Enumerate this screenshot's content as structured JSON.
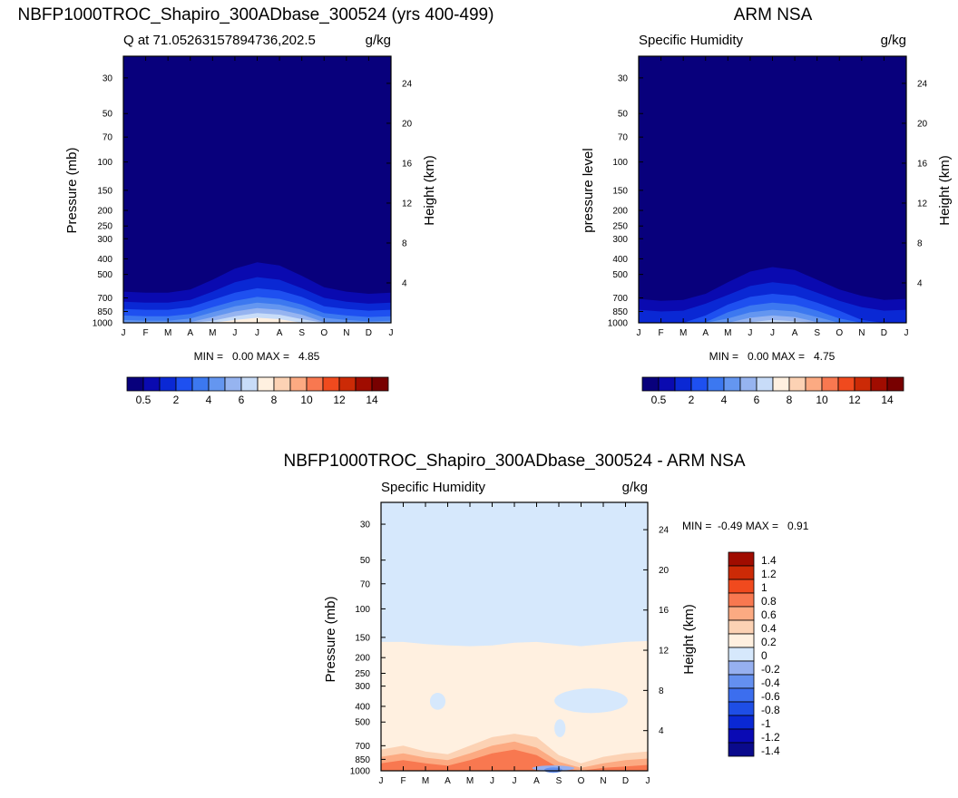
{
  "figure": {
    "panel1_title": "NBFP1000TROC_Shapiro_300ADbase_300524 (yrs 400-499)",
    "panel2_title": "ARM NSA",
    "panel3_title": "NBFP1000TROC_Shapiro_300ADbase_300524 - ARM NSA"
  },
  "colors": {
    "abs_scale": [
      "#08007c",
      "#0a0ab0",
      "#0a28d4",
      "#1e50f0",
      "#3c78f0",
      "#6496f0",
      "#96b4f0",
      "#c8dcf8",
      "#fff0e0",
      "#fcd2b4",
      "#fcaa82",
      "#f87850",
      "#f04a1e",
      "#cc2a06",
      "#a00c00",
      "#780000"
    ],
    "diff_scale": [
      "#0a0a8c",
      "#0a0ab4",
      "#0a28d4",
      "#1e4ee6",
      "#3c6eee",
      "#6490f0",
      "#96b0f0",
      "#d6e8fc",
      "#fff0e0",
      "#fcd2b4",
      "#fcaa82",
      "#f87850",
      "#f04a1e",
      "#cc2a06",
      "#a00c00"
    ]
  },
  "chart_data": [
    {
      "type": "heatmap",
      "title": "NBFP1000TROC_Shapiro_300ADbase_300524 (yrs 400-499)",
      "left_string": "Q at 71.05263157894736,202.5",
      "right_string": "g/kg",
      "ylabel": "Pressure (mb)",
      "ylabel_right": "Height (km)",
      "x_ticks": [
        "J",
        "F",
        "M",
        "A",
        "M",
        "J",
        "J",
        "A",
        "S",
        "O",
        "N",
        "D",
        "J"
      ],
      "y_ticks": [
        "30",
        "50",
        "70",
        "100",
        "150",
        "200",
        "250",
        "300",
        "400",
        "500",
        "700",
        "850",
        "1000"
      ],
      "y_right_ticks": [
        "24",
        "20",
        "16",
        "12",
        "8",
        "4"
      ],
      "min_max_text": "MIN =   0.00 MAX =   4.85",
      "min": 0.0,
      "max": 4.85,
      "colorbar_labels": [
        "0.5",
        "2",
        "4",
        "6",
        "8",
        "10",
        "12",
        "14"
      ],
      "levels": [
        0.5,
        1,
        1.5,
        2,
        2.5,
        3,
        3.5,
        4
      ],
      "contour_pressure_mb": [
        [
          640,
          740,
          820,
          900,
          960,
          1000,
          1000,
          1000
        ],
        [
          650,
          750,
          830,
          910,
          970,
          1000,
          1000,
          1000
        ],
        [
          650,
          750,
          830,
          910,
          970,
          1000,
          1000,
          1000
        ],
        [
          620,
          720,
          800,
          880,
          940,
          990,
          1000,
          1000
        ],
        [
          540,
          640,
          720,
          800,
          860,
          920,
          970,
          1000
        ],
        [
          460,
          560,
          650,
          730,
          790,
          850,
          910,
          960
        ],
        [
          420,
          520,
          610,
          690,
          750,
          810,
          870,
          930
        ],
        [
          440,
          540,
          630,
          710,
          770,
          830,
          890,
          950
        ],
        [
          510,
          610,
          690,
          770,
          830,
          890,
          950,
          1000
        ],
        [
          600,
          700,
          790,
          870,
          930,
          990,
          1000,
          1000
        ],
        [
          640,
          740,
          820,
          900,
          960,
          1000,
          1000,
          1000
        ],
        [
          660,
          760,
          840,
          920,
          980,
          1000,
          1000,
          1000
        ],
        [
          650,
          750,
          830,
          910,
          970,
          1000,
          1000,
          1000
        ]
      ]
    },
    {
      "type": "heatmap",
      "title": "ARM NSA",
      "left_string": "Specific Humidity",
      "right_string": "g/kg",
      "ylabel": "pressure level",
      "ylabel_right": "Height (km)",
      "x_ticks": [
        "J",
        "F",
        "M",
        "A",
        "M",
        "J",
        "J",
        "A",
        "S",
        "O",
        "N",
        "D",
        "J"
      ],
      "y_ticks": [
        "30",
        "50",
        "70",
        "100",
        "150",
        "200",
        "250",
        "300",
        "400",
        "500",
        "700",
        "850",
        "1000"
      ],
      "y_right_ticks": [
        "24",
        "20",
        "16",
        "12",
        "8",
        "4"
      ],
      "min_max_text": "MIN =   0.00 MAX =   4.75",
      "min": 0.0,
      "max": 4.75,
      "colorbar_labels": [
        "0.5",
        "2",
        "4",
        "6",
        "8",
        "10",
        "12",
        "14"
      ],
      "levels": [
        0.5,
        1,
        1.5,
        2,
        2.5,
        3,
        3.5,
        4
      ],
      "contour_pressure_mb": [
        [
          710,
          830,
          1000,
          1000,
          1000,
          1000,
          1000,
          1000
        ],
        [
          730,
          850,
          1000,
          1000,
          1000,
          1000,
          1000,
          1000
        ],
        [
          720,
          840,
          1000,
          1000,
          1000,
          1000,
          1000,
          1000
        ],
        [
          660,
          760,
          900,
          990,
          1000,
          1000,
          1000,
          1000
        ],
        [
          560,
          670,
          770,
          860,
          940,
          1000,
          1000,
          1000
        ],
        [
          480,
          590,
          690,
          780,
          860,
          930,
          990,
          1000
        ],
        [
          450,
          560,
          660,
          750,
          830,
          900,
          960,
          1000
        ],
        [
          470,
          580,
          680,
          770,
          850,
          920,
          980,
          1000
        ],
        [
          540,
          650,
          750,
          840,
          920,
          990,
          1000,
          1000
        ],
        [
          620,
          730,
          840,
          940,
          1000,
          1000,
          1000,
          1000
        ],
        [
          680,
          800,
          960,
          1000,
          1000,
          1000,
          1000,
          1000
        ],
        [
          720,
          840,
          1000,
          1000,
          1000,
          1000,
          1000,
          1000
        ],
        [
          710,
          830,
          1000,
          1000,
          1000,
          1000,
          1000,
          1000
        ]
      ]
    },
    {
      "type": "heatmap",
      "title": "NBFP1000TROC_Shapiro_300ADbase_300524 - ARM NSA",
      "left_string": "Specific Humidity",
      "right_string": "g/kg",
      "ylabel": "Pressure (mb)",
      "ylabel_right": "Height (km)",
      "x_ticks": [
        "J",
        "F",
        "M",
        "A",
        "M",
        "J",
        "J",
        "A",
        "S",
        "O",
        "N",
        "D",
        "J"
      ],
      "y_ticks": [
        "30",
        "50",
        "70",
        "100",
        "150",
        "200",
        "250",
        "300",
        "400",
        "500",
        "700",
        "850",
        "1000"
      ],
      "y_right_ticks": [
        "24",
        "20",
        "16",
        "12",
        "8",
        "4"
      ],
      "min_max_text": "MIN =  -0.49 MAX =   0.91",
      "min": -0.49,
      "max": 0.91,
      "colorbar_labels": [
        "1.4",
        "1.2",
        "1",
        "0.8",
        "0.6",
        "0.4",
        "0.2",
        "0",
        "-0.2",
        "-0.4",
        "-0.6",
        "-0.8",
        "-1",
        "-1.2",
        "-1.4"
      ],
      "zero_contour_pressure_mb": [
        160,
        160,
        165,
        168,
        170,
        168,
        162,
        160,
        165,
        170,
        165,
        160,
        158
      ],
      "features": {
        "positive_lower_max_mb": [
          [
            740,
            820,
            900
          ],
          [
            700,
            780,
            860
          ],
          [
            760,
            830,
            900
          ],
          [
            790,
            860,
            930
          ],
          [
            700,
            780,
            860
          ],
          [
            620,
            700,
            780
          ],
          [
            590,
            660,
            740
          ],
          [
            620,
            720,
            800
          ],
          [
            800,
            880,
            960
          ],
          [
            900,
            960,
            1000
          ],
          [
            820,
            900,
            960
          ],
          [
            780,
            860,
            940
          ],
          [
            760,
            840,
            920
          ]
        ],
        "negative_patches": [
          {
            "month_from": 2.2,
            "month_to": 2.9,
            "p_from": 330,
            "p_to": 420
          },
          {
            "month_from": 7.8,
            "month_to": 11.1,
            "p_from": 310,
            "p_to": 440
          },
          {
            "month_from": 7.8,
            "month_to": 8.3,
            "p_from": 480,
            "p_to": 620
          },
          {
            "month_from": 6.8,
            "month_to": 8.7,
            "p_from": 930,
            "p_to": 1000
          }
        ]
      }
    }
  ]
}
